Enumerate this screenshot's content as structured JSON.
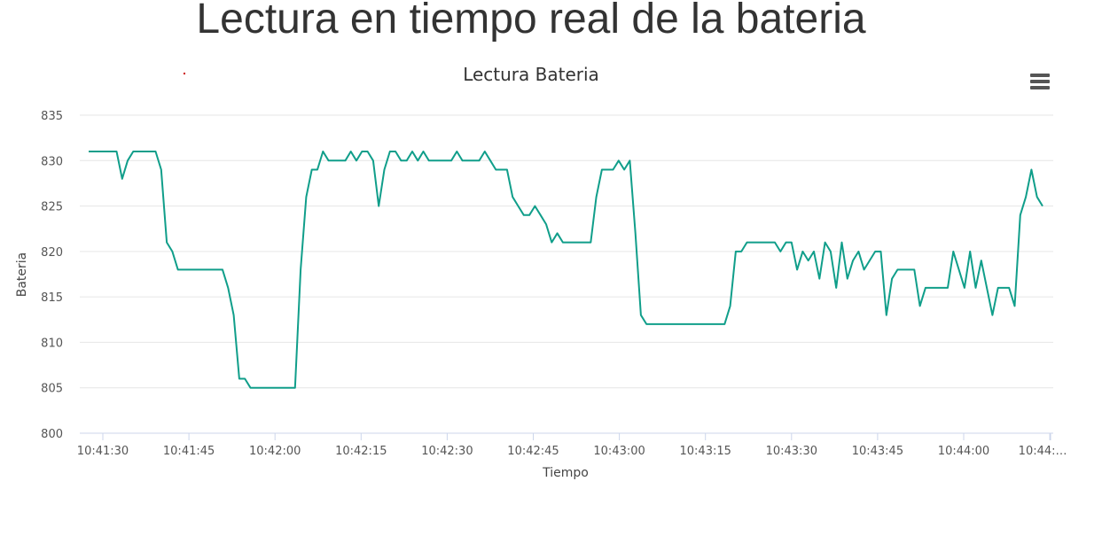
{
  "page": {
    "title": "Lectura en tiempo real de la bateria"
  },
  "chart_data": {
    "type": "line",
    "title": "Lectura Bateria",
    "xlabel": "Tiempo",
    "ylabel": "Bateria",
    "ylim": [
      800,
      835
    ],
    "yticks": [
      800,
      805,
      810,
      815,
      820,
      825,
      830,
      835
    ],
    "xticks": [
      "10:41:30",
      "10:41:45",
      "10:42:00",
      "10:42:15",
      "10:42:30",
      "10:42:45",
      "10:43:00",
      "10:43:15",
      "10:43:30",
      "10:43:45",
      "10:44:00",
      "10:44:…"
    ],
    "grid": true,
    "legend": "none",
    "series": [
      {
        "color": "#109e8a",
        "values": [
          831,
          831,
          831,
          831,
          831,
          831,
          828,
          830,
          831,
          831,
          831,
          831,
          831,
          829,
          821,
          820,
          818,
          818,
          818,
          818,
          818,
          818,
          818,
          818,
          818,
          816,
          813,
          806,
          806,
          805,
          805,
          805,
          805,
          805,
          805,
          805,
          805,
          805,
          818,
          826,
          829,
          829,
          831,
          830,
          830,
          830,
          830,
          831,
          830,
          831,
          831,
          830,
          825,
          829,
          831,
          831,
          830,
          830,
          831,
          830,
          831,
          830,
          830,
          830,
          830,
          830,
          831,
          830,
          830,
          830,
          830,
          831,
          830,
          829,
          829,
          829,
          826,
          825,
          824,
          824,
          825,
          824,
          823,
          821,
          822,
          821,
          821,
          821,
          821,
          821,
          821,
          826,
          829,
          829,
          829,
          830,
          829,
          830,
          822,
          813,
          812,
          812,
          812,
          812,
          812,
          812,
          812,
          812,
          812,
          812,
          812,
          812,
          812,
          812,
          812,
          814,
          820,
          820,
          821,
          821,
          821,
          821,
          821,
          821,
          820,
          821,
          821,
          818,
          820,
          819,
          820,
          817,
          821,
          820,
          816,
          821,
          817,
          819,
          820,
          818,
          819,
          820,
          820,
          813,
          817,
          818,
          818,
          818,
          818,
          814,
          816,
          816,
          816,
          816,
          816,
          820,
          818,
          816,
          820,
          816,
          819,
          816,
          813,
          816,
          816,
          816,
          814,
          824,
          826,
          829,
          826,
          825
        ]
      }
    ]
  },
  "menu": {
    "icon": "hamburger-menu-icon"
  }
}
